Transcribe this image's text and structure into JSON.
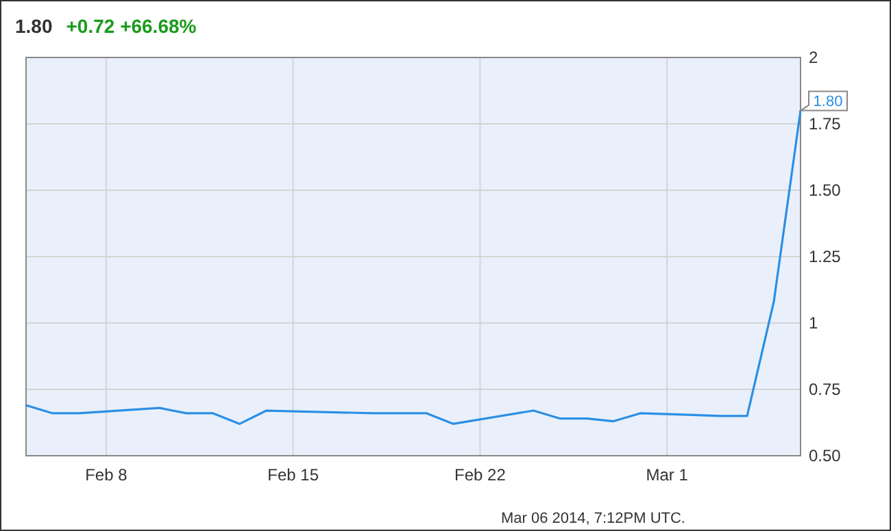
{
  "chart_data": {
    "type": "line",
    "title": "1.80",
    "subtitle": "+0.72 +66.68%",
    "annotations": [
      "Mar 06 2014, 7:12PM UTC."
    ],
    "x": [
      "2014-02-05",
      "2014-02-06",
      "2014-02-07",
      "2014-02-10",
      "2014-02-11",
      "2014-02-12",
      "2014-02-13",
      "2014-02-14",
      "2014-02-18",
      "2014-02-19",
      "2014-02-20",
      "2014-02-21",
      "2014-02-24",
      "2014-02-25",
      "2014-02-26",
      "2014-02-27",
      "2014-02-28",
      "2014-03-03",
      "2014-03-04",
      "2014-03-05",
      "2014-03-06"
    ],
    "series": [
      {
        "color": "#2b8fe6",
        "values": [
          0.69,
          0.66,
          0.66,
          0.68,
          0.66,
          0.66,
          0.62,
          0.67,
          0.66,
          0.66,
          0.66,
          0.62,
          0.67,
          0.64,
          0.64,
          0.63,
          0.66,
          0.65,
          0.65,
          1.08,
          1.8
        ],
        "value_labels": [
          null,
          null,
          null,
          null,
          null,
          null,
          null,
          null,
          null,
          null,
          null,
          null,
          null,
          null,
          null,
          null,
          null,
          null,
          null,
          null,
          "1.80"
        ]
      }
    ],
    "xlim": [
      "2014-02-05",
      "2014-03-06"
    ],
    "xticks": [
      {
        "value": "2014-02-08",
        "label": "Feb 8"
      },
      {
        "value": "2014-02-15",
        "label": "Feb 15"
      },
      {
        "value": "2014-02-22",
        "label": "Feb 22"
      },
      {
        "value": "2014-03-01",
        "label": "Mar 1"
      }
    ],
    "ylim": [
      0.5,
      2
    ],
    "yticks": [
      {
        "value": 0.5,
        "label": "0.50"
      },
      0.75,
      1,
      1.25,
      {
        "value": 1.5,
        "label": "1.50"
      },
      1.75,
      2
    ],
    "grid": true,
    "marker": "none",
    "line_style": "solid"
  }
}
